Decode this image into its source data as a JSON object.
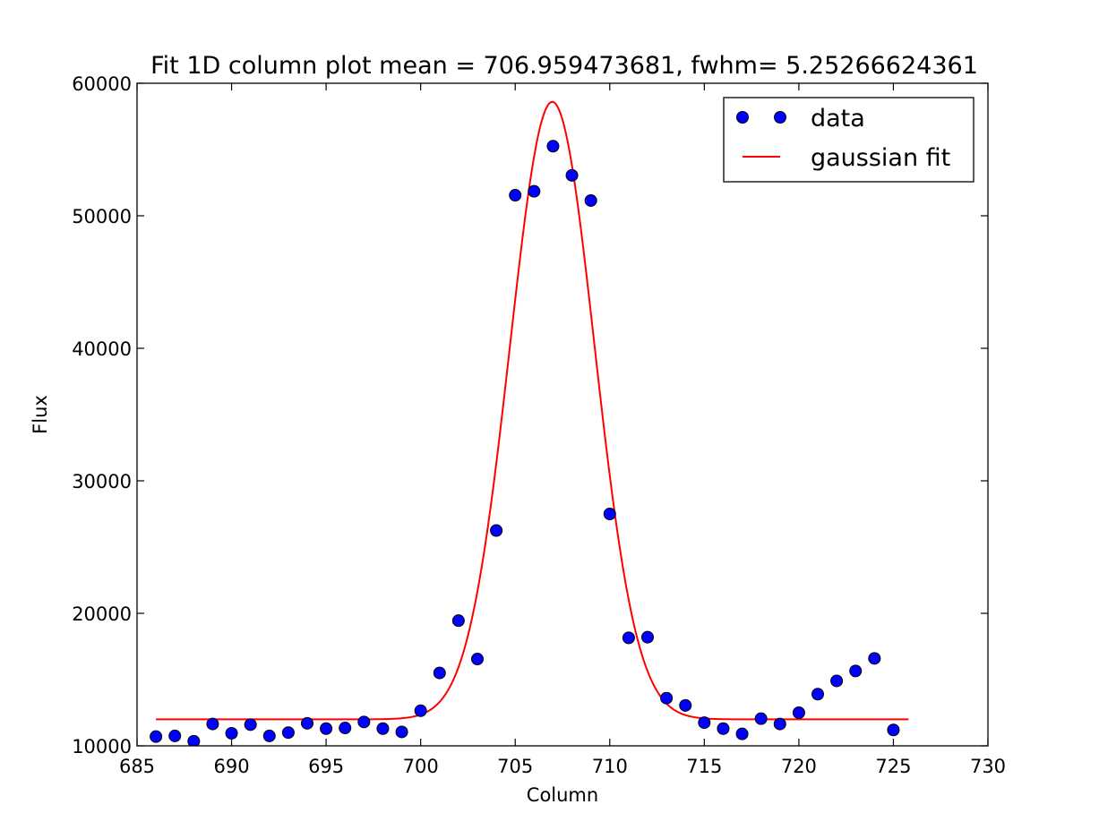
{
  "chart_data": {
    "type": "scatter",
    "title": "Fit 1D column plot  mean = 706.959473681, fwhm= 5.25266624361",
    "xlabel": "Column",
    "ylabel": "Flux",
    "xlim": [
      685,
      730
    ],
    "ylim": [
      10000,
      60000
    ],
    "xticks": [
      685,
      690,
      695,
      700,
      705,
      710,
      715,
      720,
      725,
      730
    ],
    "yticks": [
      10000,
      20000,
      30000,
      40000,
      50000,
      60000
    ],
    "grid": false,
    "legend_position": "top-right",
    "series": [
      {
        "name": "data",
        "kind": "points",
        "color": "#0000ff",
        "x": [
          686,
          687,
          688,
          689,
          690,
          691,
          692,
          693,
          694,
          695,
          696,
          697,
          698,
          699,
          700,
          701,
          702,
          703,
          704,
          705,
          706,
          707,
          708,
          709,
          710,
          711,
          712,
          713,
          714,
          715,
          716,
          717,
          718,
          719,
          720,
          721,
          722,
          723,
          724,
          725
        ],
        "y": [
          10700,
          10750,
          10350,
          11650,
          10950,
          11600,
          10750,
          11000,
          11700,
          11300,
          11350,
          11800,
          11300,
          11050,
          12650,
          15500,
          19450,
          16550,
          26250,
          51550,
          51850,
          55250,
          53050,
          51150,
          27500,
          18150,
          18200,
          13600,
          13050,
          11750,
          11300,
          10900,
          12050,
          11650,
          12500,
          13900,
          14900,
          15650,
          16600,
          11200
        ]
      },
      {
        "name": "gaussian fit",
        "kind": "line",
        "color": "#ff0000",
        "model": {
          "amplitude": 46600,
          "mean": 706.959473681,
          "fwhm": 5.25266624361,
          "offset": 12000,
          "x_range": [
            686,
            725.8
          ]
        }
      }
    ]
  }
}
